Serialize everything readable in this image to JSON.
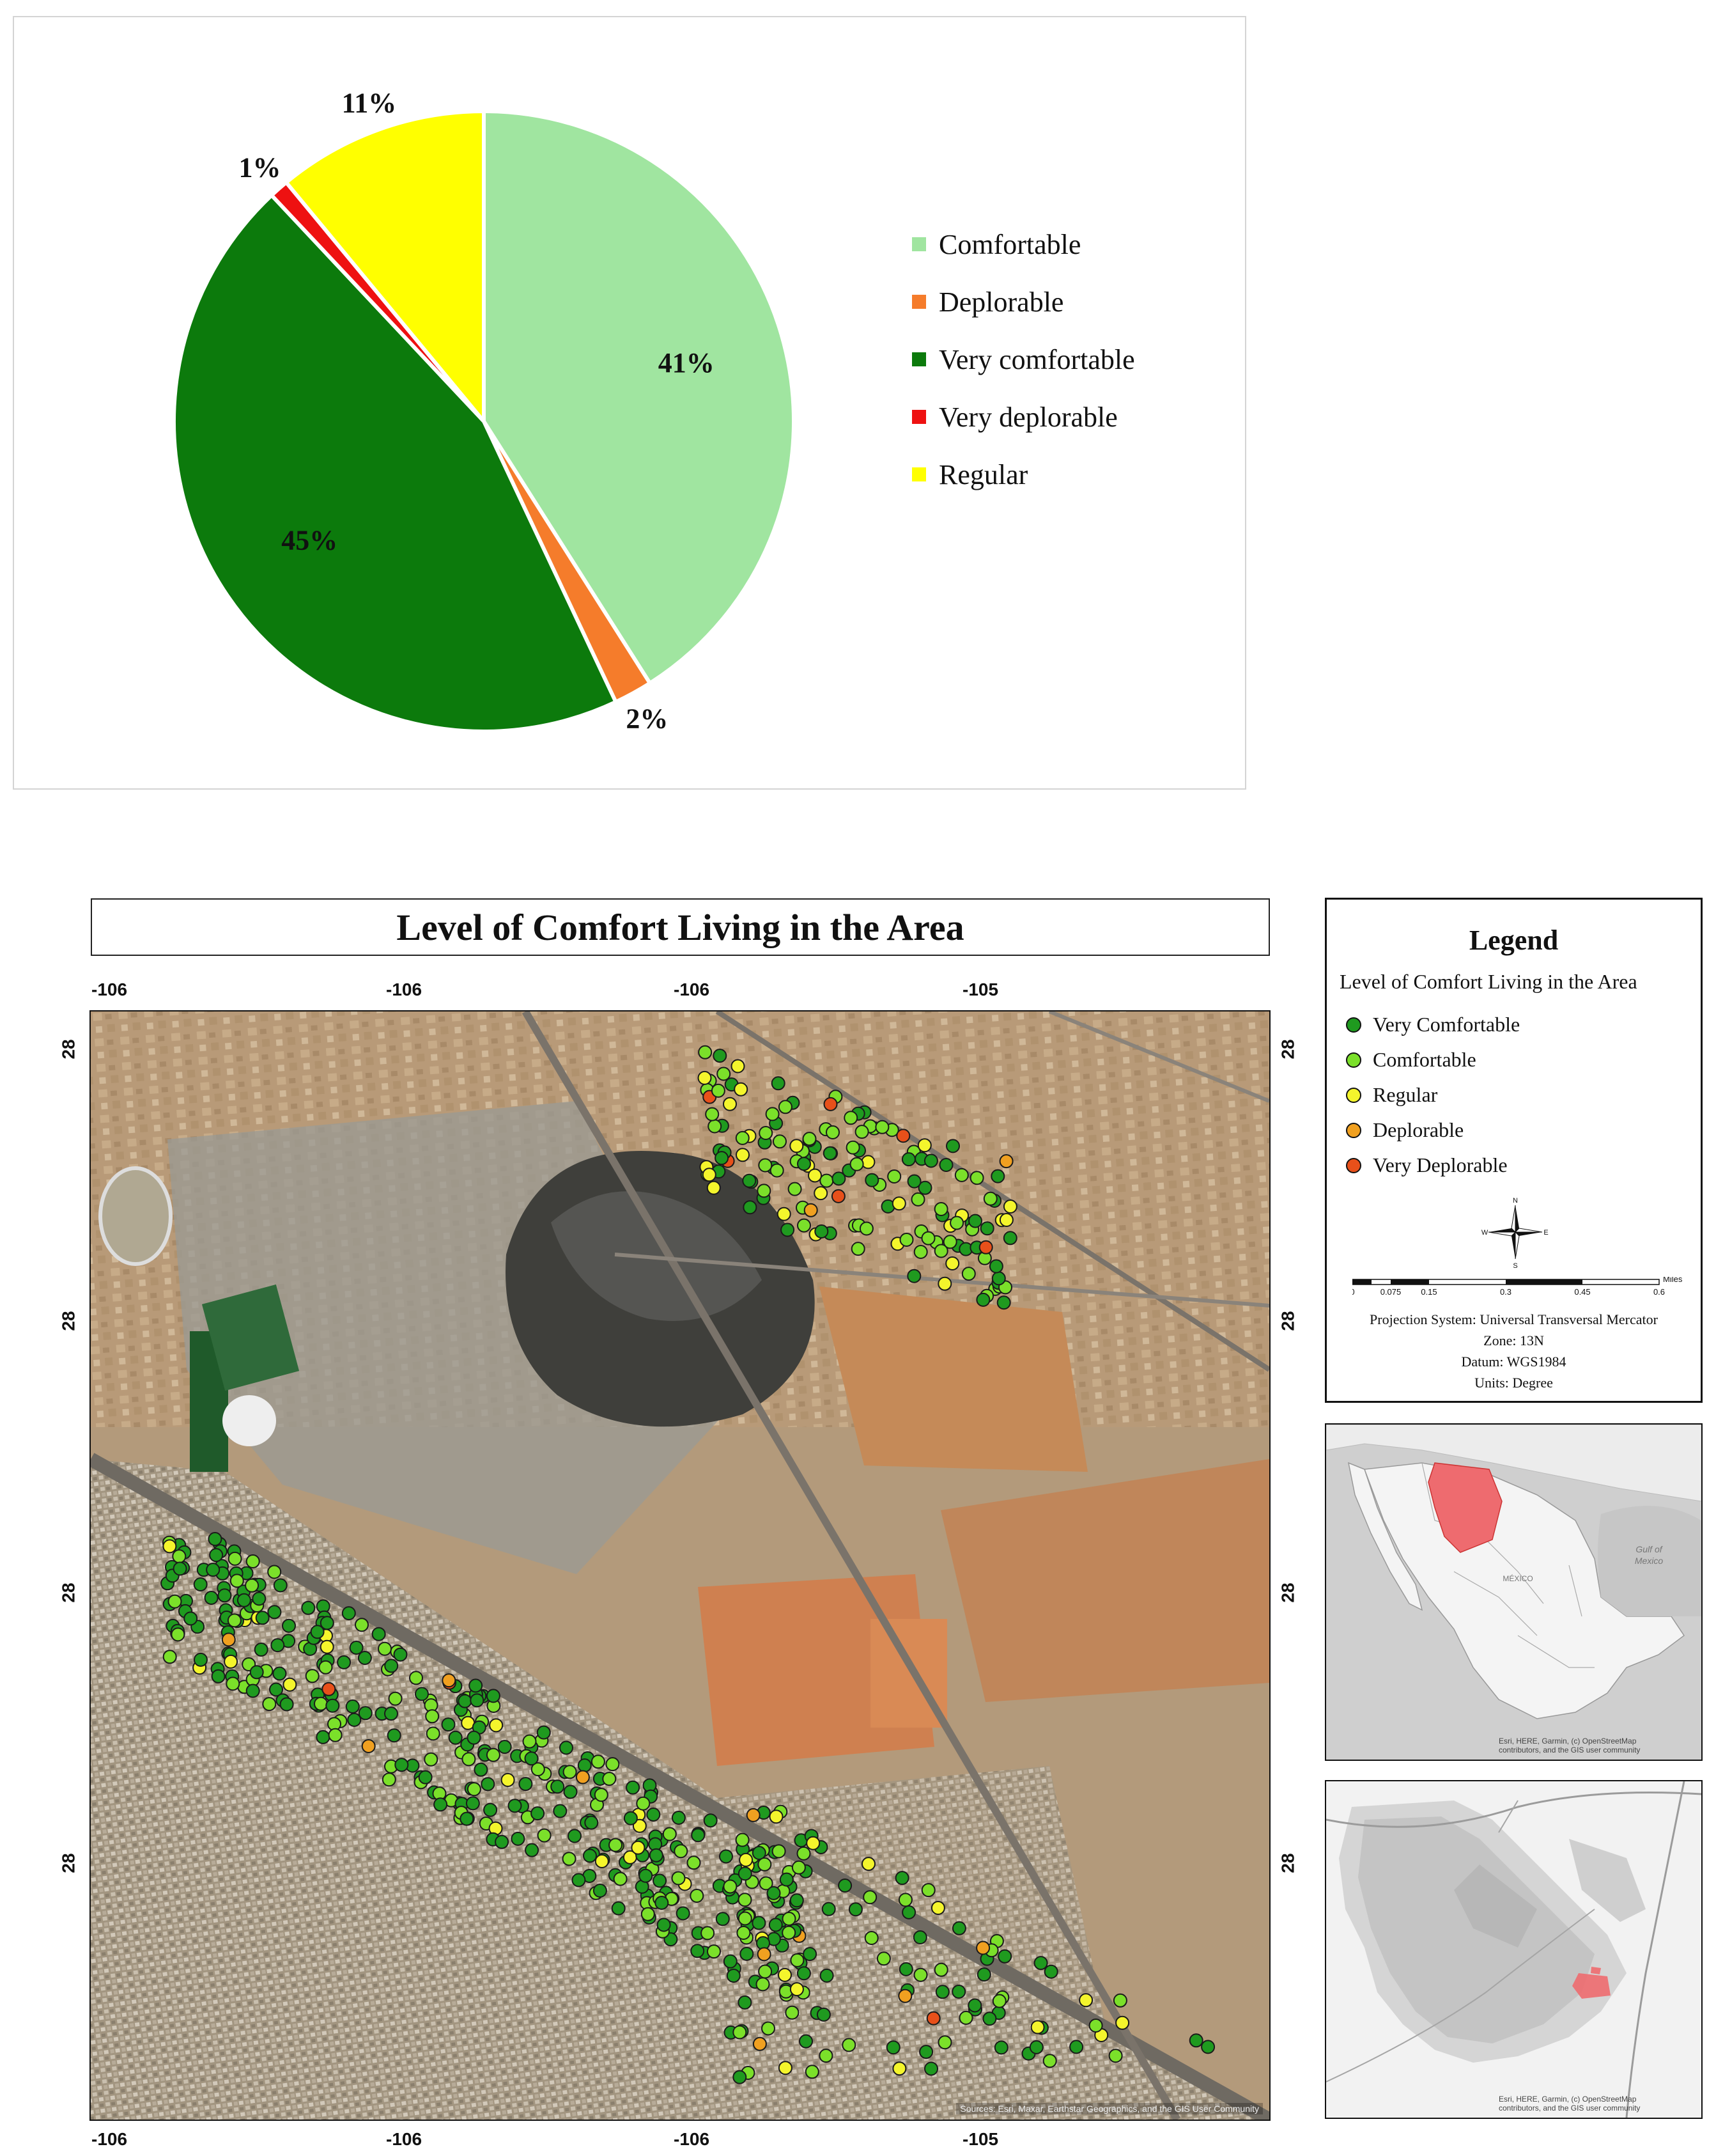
{
  "pie_chart": {
    "legend_items": [
      {
        "label": "Comfortable",
        "color": "#a0e5a0"
      },
      {
        "label": "Deplorable",
        "color": "#f57c2b"
      },
      {
        "label": "Very comfortable",
        "color": "#0c7a0c"
      },
      {
        "label": "Very deplorable",
        "color": "#ee1111"
      },
      {
        "label": "Regular",
        "color": "#ffff00"
      }
    ]
  },
  "chart_data": {
    "type": "pie",
    "slices": [
      {
        "label": "Comfortable",
        "value": 41,
        "display": "41%",
        "color": "#a0e5a0"
      },
      {
        "label": "Deplorable",
        "value": 2,
        "display": "2%",
        "color": "#f57c2b"
      },
      {
        "label": "Very comfortable",
        "value": 45,
        "display": "45%",
        "color": "#0c7a0c"
      },
      {
        "label": "Very deplorable",
        "value": 1,
        "display": "1%",
        "color": "#ee1111"
      },
      {
        "label": "Regular",
        "value": 11,
        "display": "11%",
        "color": "#ffff00"
      }
    ],
    "legend_placement": "right"
  },
  "map": {
    "title": "Level of Comfort Living in the Area",
    "x_ticks_top": [
      "-106",
      "-106",
      "-106",
      "-105"
    ],
    "x_ticks_bottom": [
      "-106",
      "-106",
      "-106",
      "-105"
    ],
    "y_ticks_left": [
      "28",
      "28",
      "28",
      "28"
    ],
    "y_ticks_right": [
      "28",
      "28",
      "28",
      "28"
    ],
    "attribution": "Sources: Esri, Maxar, Earthstar Geographics, and the GIS User Community",
    "colors": {
      "very_comfortable": "#1f9a1f",
      "comfortable": "#7be02a",
      "regular": "#f4f52c",
      "deplorable": "#f0a020",
      "very_deplorable": "#e8501a"
    }
  },
  "legend": {
    "heading": "Legend",
    "subtitle": "Level of Comfort Living in the Area",
    "items": [
      {
        "label": "Very Comfortable",
        "color": "#1f9a1f"
      },
      {
        "label": "Comfortable",
        "color": "#7be02a"
      },
      {
        "label": "Regular",
        "color": "#f4f52c"
      },
      {
        "label": "Deplorable",
        "color": "#f0a020"
      },
      {
        "label": "Very Deplorable",
        "color": "#e8501a"
      }
    ],
    "north_letters": {
      "n": "N",
      "e": "E",
      "s": "S",
      "w": "W"
    },
    "scale": {
      "ticks": [
        "0",
        "0.075",
        "0.15",
        "0.3",
        "0.45",
        "0.6"
      ],
      "unit": "Miles"
    },
    "projection": "Projection System: Universal Transversal Mercator",
    "zone": "Zone: 13N",
    "datum": "Datum: WGS1984",
    "units": "Units: Degree"
  },
  "inset_mexico": {
    "gulf_label_1": "Gulf of",
    "gulf_label_2": "Mexico",
    "country_label": "MÉXICO",
    "attribution_1": "Esri, HERE, Garmin, (c) OpenStreetMap",
    "attribution_2": "contributors, and the GIS user community"
  },
  "inset_city": {
    "attribution_1": "Esri, HERE, Garmin, (c) OpenStreetMap",
    "attribution_2": "contributors, and the GIS user community"
  }
}
